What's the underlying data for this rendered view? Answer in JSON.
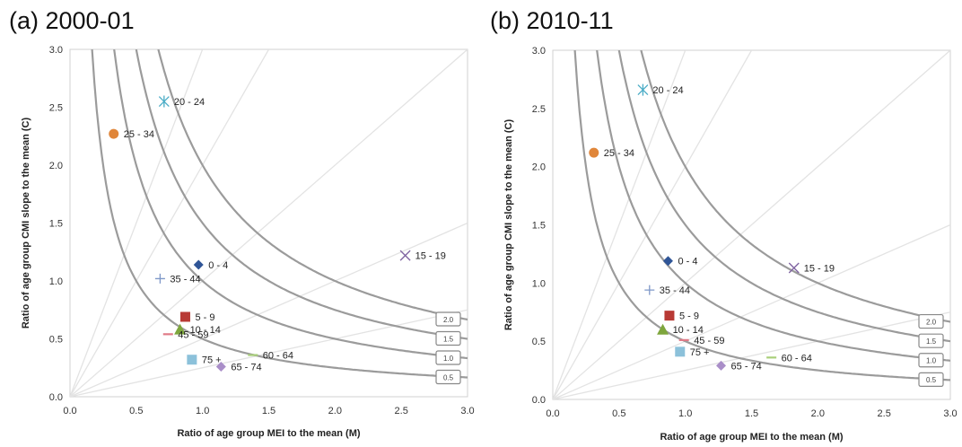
{
  "chart_data": [
    {
      "type": "scatter",
      "title": "(a) 2000-01",
      "xlabel": "Ratio of age group MEI to the mean (M)",
      "ylabel": "Ratio of age group CMI slope to the mean (C)",
      "xlim": [
        0,
        3
      ],
      "ylim": [
        0,
        3
      ],
      "xticks": [
        "0.0",
        "0.5",
        "1.0",
        "1.5",
        "2.0",
        "2.5",
        "3.0"
      ],
      "yticks": [
        "0.0",
        "0.5",
        "1.0",
        "1.5",
        "2.0",
        "2.5",
        "3.0"
      ],
      "grid": false,
      "contours": [
        {
          "label": "2.0",
          "k": 2.0
        },
        {
          "label": "1.5",
          "k": 1.5
        },
        {
          "label": "1.0",
          "k": 1.0
        },
        {
          "label": "0.5",
          "k": 0.5
        }
      ],
      "reference_lines": [
        {
          "slope": 3.0
        },
        {
          "slope": 2.0
        },
        {
          "slope": 1.0
        },
        {
          "slope": 0.5
        },
        {
          "slope": 0.25
        }
      ],
      "points": [
        {
          "label": "0 - 4",
          "x": 0.97,
          "y": 1.14,
          "marker": "diamond",
          "color": "#2f5597"
        },
        {
          "label": "5 - 9",
          "x": 0.87,
          "y": 0.69,
          "marker": "square",
          "color": "#b83a35"
        },
        {
          "label": "10 - 14",
          "x": 0.83,
          "y": 0.58,
          "marker": "triangle",
          "color": "#7ea63d"
        },
        {
          "label": "15 - 19",
          "x": 2.53,
          "y": 1.22,
          "marker": "x",
          "color": "#8064a2"
        },
        {
          "label": "20 - 24",
          "x": 0.71,
          "y": 2.55,
          "marker": "asterisk",
          "color": "#4aacc6"
        },
        {
          "label": "25 - 34",
          "x": 0.33,
          "y": 2.27,
          "marker": "circle",
          "color": "#e0863a"
        },
        {
          "label": "35 - 44",
          "x": 0.68,
          "y": 1.02,
          "marker": "plus",
          "color": "#7f98c8"
        },
        {
          "label": "45 - 59",
          "x": 0.74,
          "y": 0.54,
          "marker": "dash",
          "color": "#e07b88"
        },
        {
          "label": "60 - 64",
          "x": 1.38,
          "y": 0.36,
          "marker": "dash",
          "color": "#a9cf7a"
        },
        {
          "label": "65 - 74",
          "x": 1.14,
          "y": 0.26,
          "marker": "diamond",
          "color": "#a98ec8"
        },
        {
          "label": "75 +",
          "x": 0.92,
          "y": 0.32,
          "marker": "square",
          "color": "#8cc1da"
        }
      ]
    },
    {
      "type": "scatter",
      "title": "(b) 2010-11",
      "xlabel": "Ratio of age group MEI to the mean (M)",
      "ylabel": "Ratio of age group CMI slope to the mean (C)",
      "xlim": [
        0,
        3
      ],
      "ylim": [
        0,
        3
      ],
      "xticks": [
        "0.0",
        "0.5",
        "1.0",
        "1.5",
        "2.0",
        "2.5",
        "3.0"
      ],
      "yticks": [
        "0.0",
        "0.5",
        "1.0",
        "1.5",
        "2.0",
        "2.5",
        "3.0"
      ],
      "grid": false,
      "contours": [
        {
          "label": "2.0",
          "k": 2.0
        },
        {
          "label": "1.5",
          "k": 1.5
        },
        {
          "label": "1.0",
          "k": 1.0
        },
        {
          "label": "0.5",
          "k": 0.5
        }
      ],
      "reference_lines": [
        {
          "slope": 3.0
        },
        {
          "slope": 2.0
        },
        {
          "slope": 1.0
        },
        {
          "slope": 0.5
        },
        {
          "slope": 0.25
        }
      ],
      "points": [
        {
          "label": "0 - 4",
          "x": 0.87,
          "y": 1.19,
          "marker": "diamond",
          "color": "#2f5597"
        },
        {
          "label": "5 - 9",
          "x": 0.88,
          "y": 0.72,
          "marker": "square",
          "color": "#b83a35"
        },
        {
          "label": "10 - 14",
          "x": 0.83,
          "y": 0.6,
          "marker": "triangle",
          "color": "#7ea63d"
        },
        {
          "label": "15 - 19",
          "x": 1.82,
          "y": 1.13,
          "marker": "x",
          "color": "#8064a2"
        },
        {
          "label": "20 - 24",
          "x": 0.68,
          "y": 2.66,
          "marker": "asterisk",
          "color": "#4aacc6"
        },
        {
          "label": "25 - 34",
          "x": 0.31,
          "y": 2.12,
          "marker": "circle",
          "color": "#e0863a"
        },
        {
          "label": "35 - 44",
          "x": 0.73,
          "y": 0.94,
          "marker": "plus",
          "color": "#7f98c8"
        },
        {
          "label": "45 - 59",
          "x": 0.99,
          "y": 0.51,
          "marker": "dash",
          "color": "#e07b88"
        },
        {
          "label": "60 - 64",
          "x": 1.65,
          "y": 0.36,
          "marker": "dash",
          "color": "#a9cf7a"
        },
        {
          "label": "65 - 74",
          "x": 1.27,
          "y": 0.29,
          "marker": "diamond",
          "color": "#a98ec8"
        },
        {
          "label": "75 +",
          "x": 0.96,
          "y": 0.41,
          "marker": "square",
          "color": "#8cc1da"
        }
      ]
    }
  ]
}
